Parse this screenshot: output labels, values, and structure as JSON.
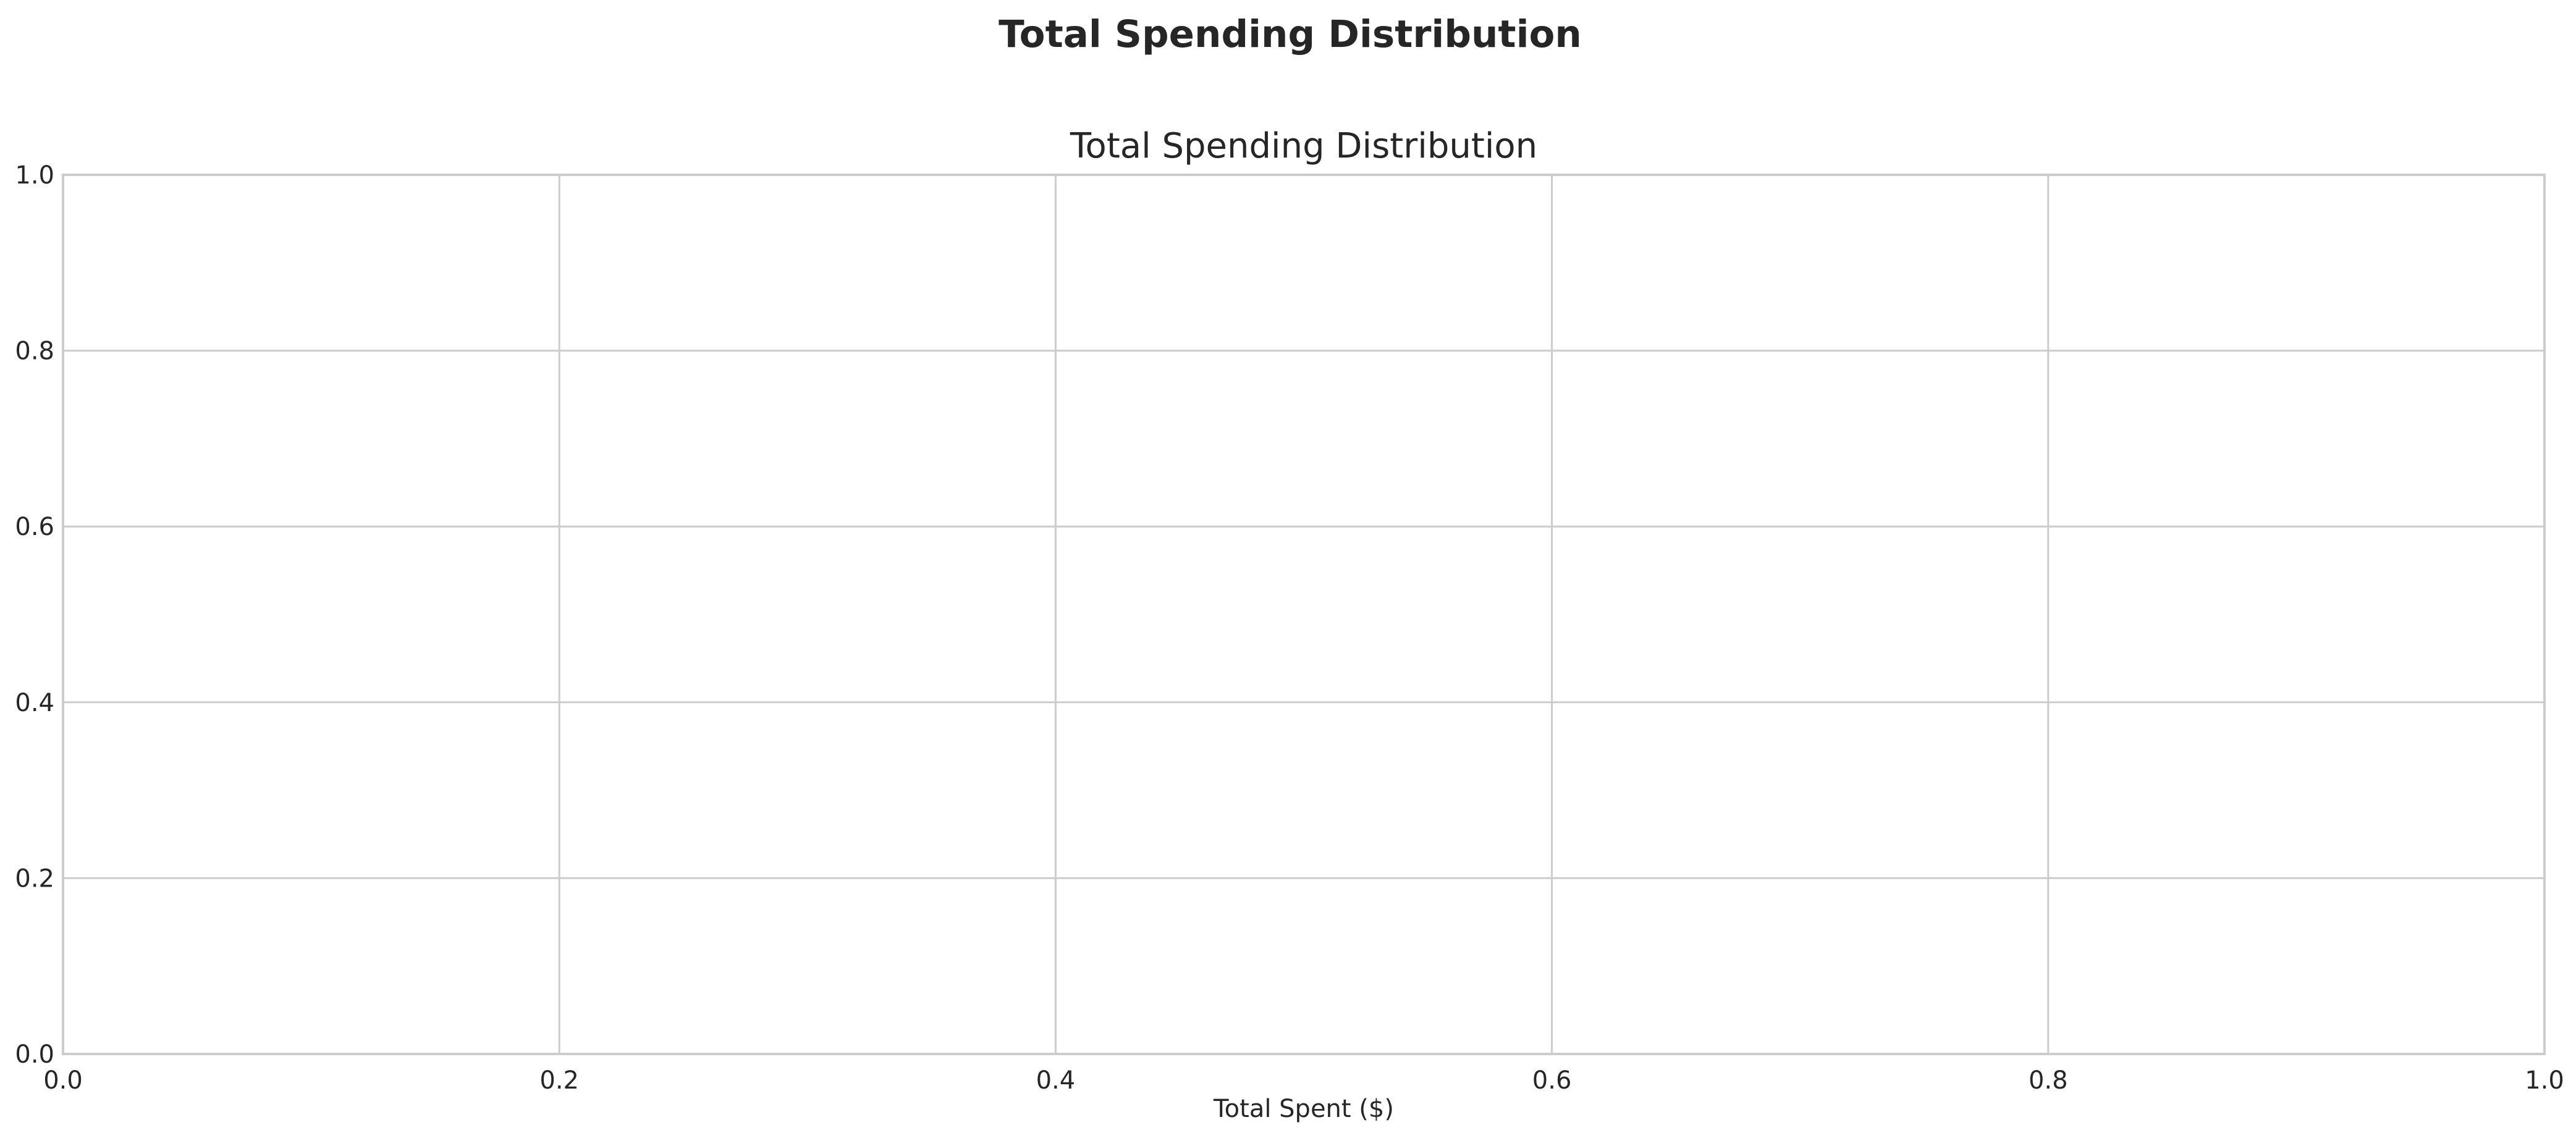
{
  "figure": {
    "suptitle": "Total Spending Distribution"
  },
  "chart_data": {
    "type": "bar",
    "title": "Total Spending Distribution",
    "xlabel": "Total Spent ($)",
    "ylabel": "",
    "xlim": [
      0.0,
      1.0
    ],
    "ylim": [
      0.0,
      1.0
    ],
    "x_ticks": [
      "0.0",
      "0.2",
      "0.4",
      "0.6",
      "0.8",
      "1.0"
    ],
    "y_ticks": [
      "0.0",
      "0.2",
      "0.4",
      "0.6",
      "0.8",
      "1.0"
    ],
    "grid": true,
    "series": [],
    "colors": {
      "grid": "#cccccc",
      "spine": "#cccccc",
      "text": "#262626",
      "background": "#ffffff"
    }
  }
}
